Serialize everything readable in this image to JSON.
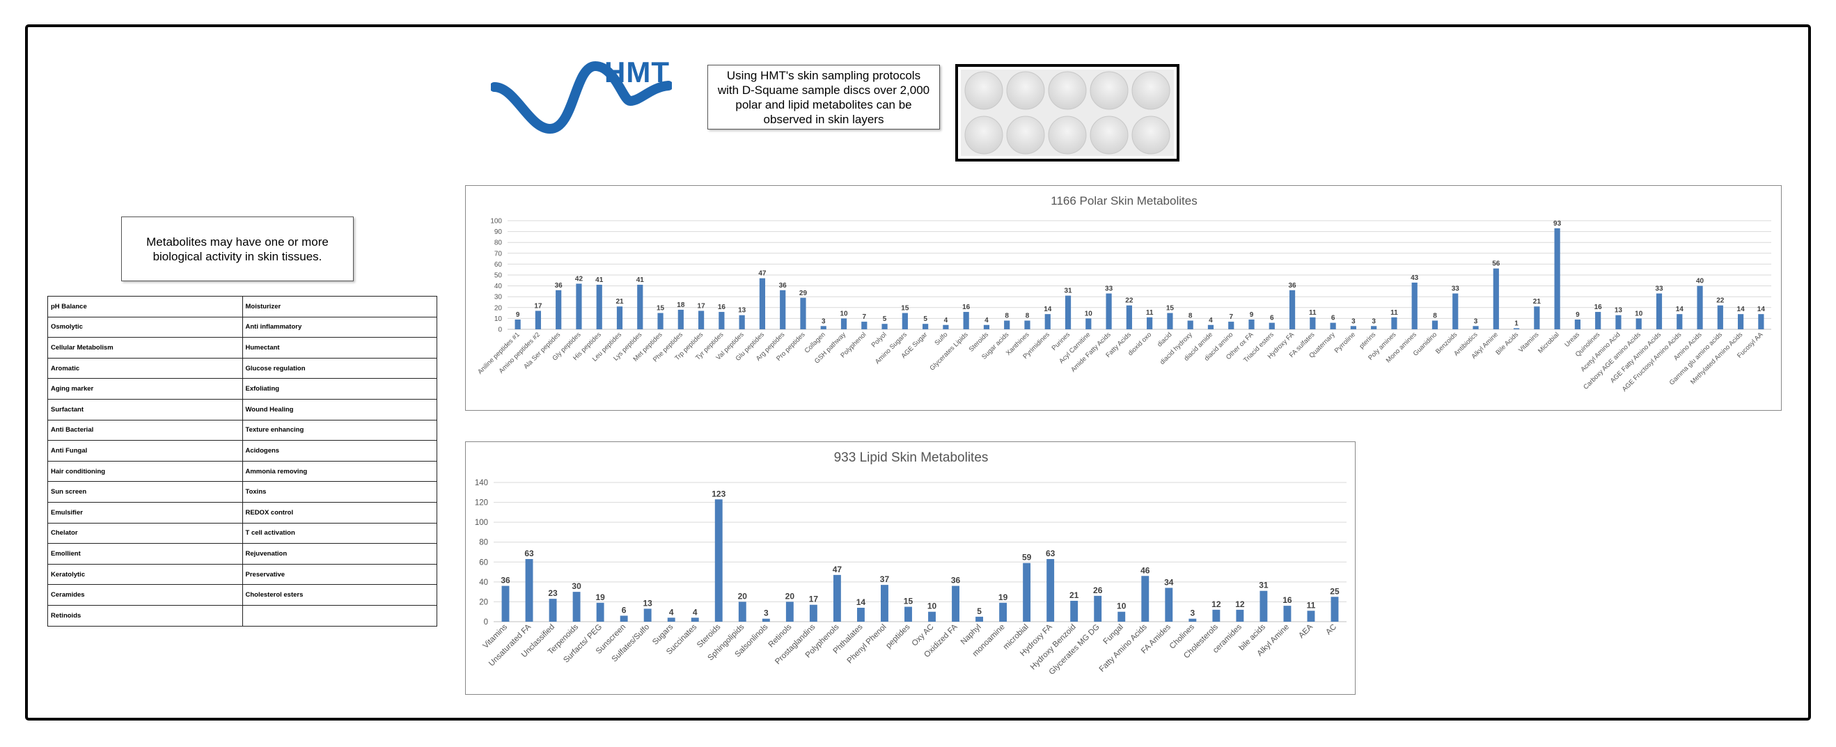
{
  "logo": {
    "text": "HMT",
    "color": "#1f67b1"
  },
  "notes": {
    "sampling": "Using HMT's skin sampling protocols\nwith D-Squame sample discs over 2,000\npolar and lipid metabolites can be\nobserved in skin layers",
    "activity": "Metabolites may have one or more\nbiological activity in skin tissues."
  },
  "activity_table": [
    [
      "pH Balance",
      "Moisturizer"
    ],
    [
      "Osmolytic",
      "Anti inflammatory"
    ],
    [
      "Cellular Metabolism",
      "Humectant"
    ],
    [
      "Aromatic",
      "Glucose regulation"
    ],
    [
      "Aging marker",
      "Exfoliating"
    ],
    [
      "Surfactant",
      "Wound Healing"
    ],
    [
      "Anti Bacterial",
      "Texture enhancing"
    ],
    [
      "Anti Fungal",
      "Acidogens"
    ],
    [
      "Hair conditioning",
      "Ammonia removing"
    ],
    [
      "Sun screen",
      "Toxins"
    ],
    [
      "Emulsifier",
      "REDOX control"
    ],
    [
      "Chelator",
      "T cell activation"
    ],
    [
      "Emollient",
      "Rejuvenation"
    ],
    [
      "Keratolytic",
      "Preservative"
    ],
    [
      "Ceramides",
      "Cholesterol esters"
    ],
    [
      "Retinoids",
      ""
    ]
  ],
  "chart_data": [
    {
      "type": "bar",
      "title": "1166 Polar Skin Metabolites",
      "bar_color": "#4a7ebb",
      "ylim": [
        0,
        100
      ],
      "yticks": [
        0,
        10,
        20,
        30,
        40,
        50,
        60,
        70,
        80,
        90,
        100
      ],
      "grid": true,
      "categories": [
        "Aniline peptides #1",
        "Amino peptides #2",
        "Ala Ser peptides",
        "Gly peptides",
        "His peptides",
        "Leu peptides",
        "Lys peptides",
        "Met peptides",
        "Phe peptides",
        "Trp peptides",
        "Tyr peptides",
        "Val peptides",
        "Glu peptides",
        "Arg peptides",
        "Pro peptides",
        "Collagen",
        "GSH pathway",
        "Polyphenol",
        "Polyol",
        "Amino Sugars",
        "AGE Sugar",
        "Sulfo",
        "Glycerates Lipids",
        "Steroids",
        "Sugar acids",
        "Xanthines",
        "Pyrimidines",
        "Purines",
        "Acyl Carnitine",
        "Amide Fatty Acids",
        "Fatty Acids",
        "dioxid oxo",
        "diacid",
        "diacid hydroxy",
        "diacid amide",
        "diacid amino",
        "Other ox FA",
        "Triacid esters",
        "Hydroxy FA",
        "FA sulfates",
        "Quaternary",
        "Pyrroline",
        "pterins",
        "Poly amines",
        "Mono amines",
        "Guanidino",
        "Benzoids",
        "Antibiotics",
        "Alkyl Amine",
        "Bile Acids",
        "Vitamins",
        "Microbial",
        "Ureas",
        "Quinolines",
        "Acetyl Amino Acid",
        "Carboxy AGE amino Acids",
        "AGE Fatty Amino Acids",
        "AGE Fructosyl Amino Acids",
        "Amino Acids",
        "Gamma glu amino acids",
        "Methylated Amino Acids",
        "Fucosyl AA"
      ],
      "values": [
        9,
        17,
        36,
        42,
        41,
        21,
        41,
        15,
        18,
        17,
        16,
        13,
        47,
        36,
        29,
        3,
        10,
        7,
        5,
        15,
        5,
        4,
        16,
        4,
        8,
        8,
        14,
        31,
        10,
        33,
        22,
        11,
        15,
        8,
        4,
        7,
        9,
        6,
        36,
        11,
        6,
        3,
        3,
        11,
        43,
        8,
        33,
        3,
        56,
        1,
        21,
        93,
        9,
        16,
        13,
        10,
        33,
        14,
        40,
        22,
        14,
        14
      ]
    },
    {
      "type": "bar",
      "title": "933 Lipid Skin Metabolites",
      "bar_color": "#4a7ebb",
      "ylim": [
        0,
        140
      ],
      "yticks": [
        0,
        20,
        40,
        60,
        80,
        100,
        120,
        140
      ],
      "grid": true,
      "categories": [
        "Vitamins",
        "Unsaturated FA",
        "Unclassified",
        "Terpenoids",
        "Surfacts/ PEG",
        "Sunscreen",
        "Sulfates/Sulfo",
        "Sugars",
        "Succinates",
        "Steroids",
        "Sphingolipids",
        "Salsonlinols",
        "Retinols",
        "Prostaglandins",
        "Polyphenols",
        "Phthalates",
        "Phenyl Phenol",
        "peptides",
        "Oxy AC",
        "Oxidized FA",
        "Naphyl",
        "monoamine",
        "microbial",
        "Hydroxy FA",
        "Hydroxy Benzoid",
        "Glycerates MG DG",
        "Fungal",
        "Fatty Amino Acids",
        "FA Amides",
        "Cholines",
        "Cholesterols",
        "ceramides",
        "bile acids",
        "Alkyl Amine",
        "AEA",
        "AC"
      ],
      "values": [
        36,
        63,
        23,
        30,
        19,
        6,
        13,
        4,
        4,
        123,
        20,
        3,
        20,
        17,
        47,
        14,
        37,
        15,
        10,
        36,
        5,
        19,
        59,
        63,
        21,
        26,
        10,
        46,
        34,
        3,
        12,
        12,
        31,
        16,
        11,
        25
      ]
    }
  ]
}
